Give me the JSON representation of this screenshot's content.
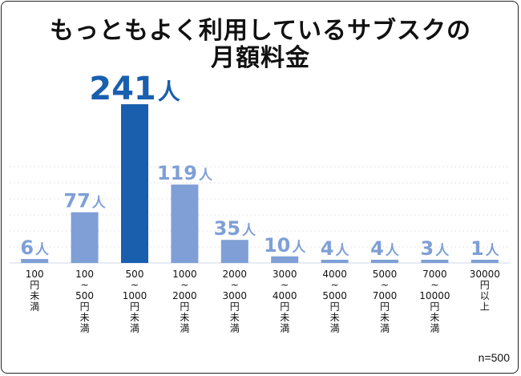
{
  "chart_data": {
    "type": "bar",
    "title_line1": "もっともよく利用しているサブスクの",
    "title_line2": "月額料金",
    "unit": "人",
    "categories": [
      [
        "100",
        "円",
        "未",
        "満"
      ],
      [
        "100",
        "~",
        "500",
        "円",
        "未",
        "満"
      ],
      [
        "500",
        "~",
        "1000",
        "円",
        "未",
        "満"
      ],
      [
        "1000",
        "~",
        "2000",
        "円",
        "未",
        "満"
      ],
      [
        "2000",
        "~",
        "3000",
        "円",
        "未",
        "満"
      ],
      [
        "3000",
        "~",
        "4000",
        "円",
        "未",
        "満"
      ],
      [
        "4000",
        "~",
        "5000",
        "円",
        "未",
        "満"
      ],
      [
        "5000",
        "~",
        "7000",
        "円",
        "未",
        "満"
      ],
      [
        "7000",
        "~",
        "10000",
        "円",
        "未",
        "満"
      ],
      [
        "30000",
        "円",
        "以",
        "上"
      ]
    ],
    "values": [
      6,
      77,
      241,
      119,
      35,
      10,
      4,
      4,
      3,
      1
    ],
    "highlight_index": 2,
    "ylim": [
      0,
      241
    ],
    "grid": true,
    "note": "n=500",
    "colors": {
      "bar": "#7f9fd6",
      "bar_highlight": "#1a5fae",
      "label": "#7f9fd6",
      "label_highlight": "#1a5fae",
      "grid": "#e2e2e2"
    }
  }
}
